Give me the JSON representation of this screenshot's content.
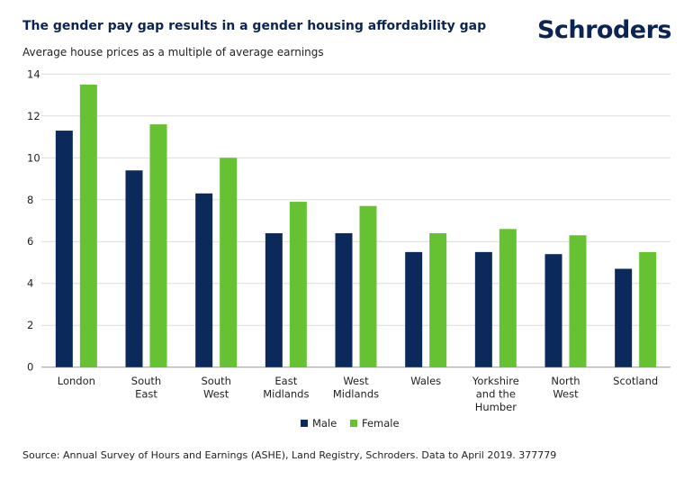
{
  "header": {
    "title": "The gender pay gap results in a gender housing affordability gap",
    "brand": "Schroders"
  },
  "footer": {
    "source": "Source: Annual Survey of Hours and Earnings (ASHE), Land Registry, Schroders. Data to April 2019. 377779"
  },
  "chart_data": {
    "type": "bar",
    "title": "The gender pay gap results in a gender housing affordability gap",
    "subtitle": "Average house prices as a multiple of average earnings",
    "xlabel": "",
    "ylabel": "",
    "ylim": [
      0,
      14
    ],
    "yticks": [
      0,
      2,
      4,
      6,
      8,
      10,
      12,
      14
    ],
    "grid": true,
    "legend_position": "bottom",
    "categories": [
      "London",
      "South East",
      "South West",
      "East Midlands",
      "West Midlands",
      "Wales",
      "Yorkshire and the Humber",
      "North West",
      "Scotland"
    ],
    "category_lines": [
      [
        "London"
      ],
      [
        "South",
        "East"
      ],
      [
        "South",
        "West"
      ],
      [
        "East",
        "Midlands"
      ],
      [
        "West",
        "Midlands"
      ],
      [
        "Wales"
      ],
      [
        "Yorkshire",
        "and the",
        "Humber"
      ],
      [
        "North",
        "West"
      ],
      [
        "Scotland"
      ]
    ],
    "series": [
      {
        "name": "Male",
        "color": "#0b2a5b",
        "values": [
          11.3,
          9.4,
          8.3,
          6.4,
          6.4,
          5.5,
          5.5,
          5.4,
          4.7
        ]
      },
      {
        "name": "Female",
        "color": "#66c133",
        "values": [
          13.5,
          11.6,
          10.0,
          7.9,
          7.7,
          6.4,
          6.6,
          6.3,
          5.5
        ]
      }
    ]
  }
}
